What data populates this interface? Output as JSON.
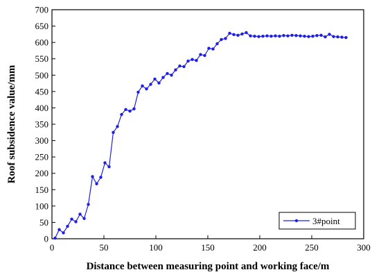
{
  "chart_data": {
    "type": "line",
    "xlabel": "Distance between measuring point and working face/m",
    "ylabel": "Roof subsidence value/mm",
    "xlim": [
      0,
      300
    ],
    "ylim": [
      0,
      700
    ],
    "xticks": [
      0,
      50,
      100,
      150,
      200,
      250,
      300
    ],
    "yticks": [
      0,
      50,
      100,
      150,
      200,
      250,
      300,
      350,
      400,
      450,
      500,
      550,
      600,
      650,
      700
    ],
    "grid": false,
    "legend_position": "bottom-right",
    "colors": {
      "series": "#1f1fe0",
      "axis": "#000000"
    },
    "series": [
      {
        "name": "3#point",
        "marker": "circle",
        "x": [
          3,
          7,
          11,
          15,
          19,
          23,
          27,
          31,
          35,
          39,
          43,
          47,
          51,
          55,
          59,
          63,
          67,
          71,
          75,
          79,
          83,
          87,
          91,
          95,
          99,
          103,
          107,
          111,
          115,
          119,
          123,
          127,
          131,
          135,
          139,
          143,
          147,
          151,
          155,
          159,
          163,
          167,
          171,
          175,
          179,
          183,
          187,
          191,
          195,
          199,
          203,
          207,
          211,
          215,
          219,
          223,
          227,
          231,
          235,
          239,
          243,
          247,
          251,
          255,
          259,
          263,
          267,
          271,
          275,
          279,
          283
        ],
        "y": [
          2,
          28,
          18,
          38,
          60,
          52,
          75,
          62,
          105,
          190,
          168,
          188,
          232,
          220,
          325,
          343,
          380,
          395,
          390,
          397,
          448,
          467,
          458,
          472,
          488,
          476,
          493,
          505,
          500,
          516,
          528,
          526,
          543,
          548,
          545,
          563,
          560,
          582,
          580,
          596,
          609,
          612,
          628,
          624,
          622,
          626,
          630,
          620,
          619,
          618,
          619,
          620,
          619,
          620,
          619,
          621,
          620,
          622,
          621,
          620,
          619,
          618,
          619,
          621,
          622,
          617,
          625,
          618,
          617,
          616,
          615
        ]
      }
    ]
  }
}
